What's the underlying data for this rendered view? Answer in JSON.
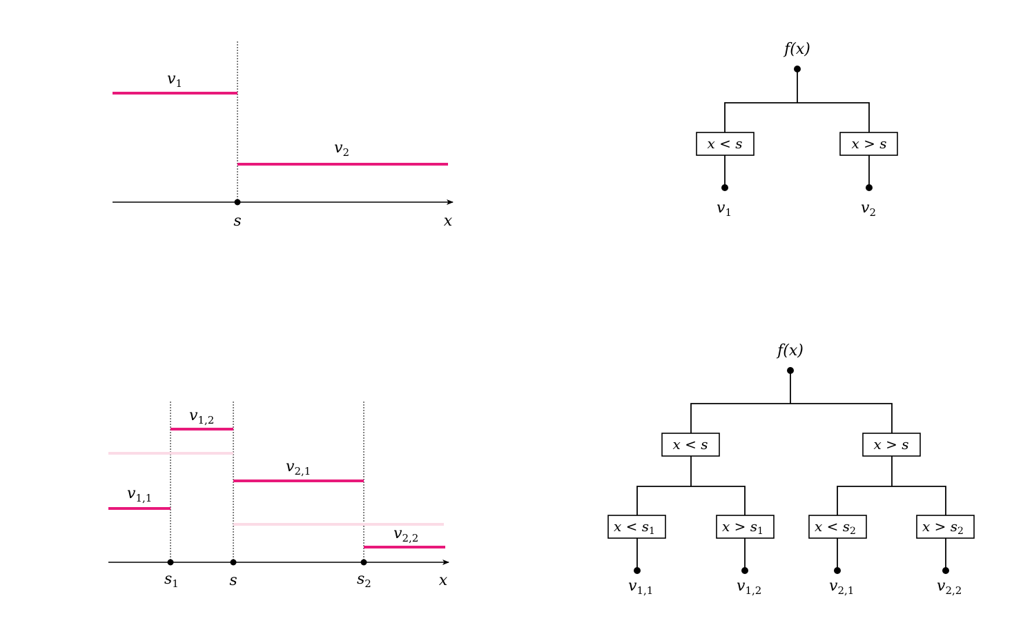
{
  "top_plot": {
    "v1": {
      "sym": "v",
      "sub": "1"
    },
    "v2": {
      "sym": "v",
      "sub": "2"
    },
    "s": {
      "sym": "s",
      "sub": ""
    },
    "x": {
      "sym": "x",
      "sub": ""
    }
  },
  "top_tree": {
    "root": "f(x)",
    "left_cond": "x < s",
    "right_cond": "x > s",
    "left_leaf": {
      "sym": "v",
      "sub": "1"
    },
    "right_leaf": {
      "sym": "v",
      "sub": "2"
    }
  },
  "bottom_plot": {
    "v11": {
      "sym": "v",
      "sub": "1,1"
    },
    "v12": {
      "sym": "v",
      "sub": "1,2"
    },
    "v21": {
      "sym": "v",
      "sub": "2,1"
    },
    "v22": {
      "sym": "v",
      "sub": "2,2"
    },
    "s1": {
      "sym": "s",
      "sub": "1"
    },
    "s": {
      "sym": "s",
      "sub": ""
    },
    "s2": {
      "sym": "s",
      "sub": "2"
    },
    "x": {
      "sym": "x",
      "sub": ""
    }
  },
  "bottom_tree": {
    "root": "f(x)",
    "left_cond": "x < s",
    "right_cond": "x > s",
    "ll_cond": {
      "text": "x < s",
      "sub": "1"
    },
    "lr_cond": {
      "text": "x > s",
      "sub": "1"
    },
    "rl_cond": {
      "text": "x < s",
      "sub": "2"
    },
    "rr_cond": {
      "text": "x > s",
      "sub": "2"
    },
    "leaf_v11": {
      "sym": "v",
      "sub": "1,1"
    },
    "leaf_v12": {
      "sym": "v",
      "sub": "1,2"
    },
    "leaf_v21": {
      "sym": "v",
      "sub": "2,1"
    },
    "leaf_v22": {
      "sym": "v",
      "sub": "2,2"
    }
  },
  "colors": {
    "step": "#e8197a",
    "ghost": "#fbdbe6"
  }
}
